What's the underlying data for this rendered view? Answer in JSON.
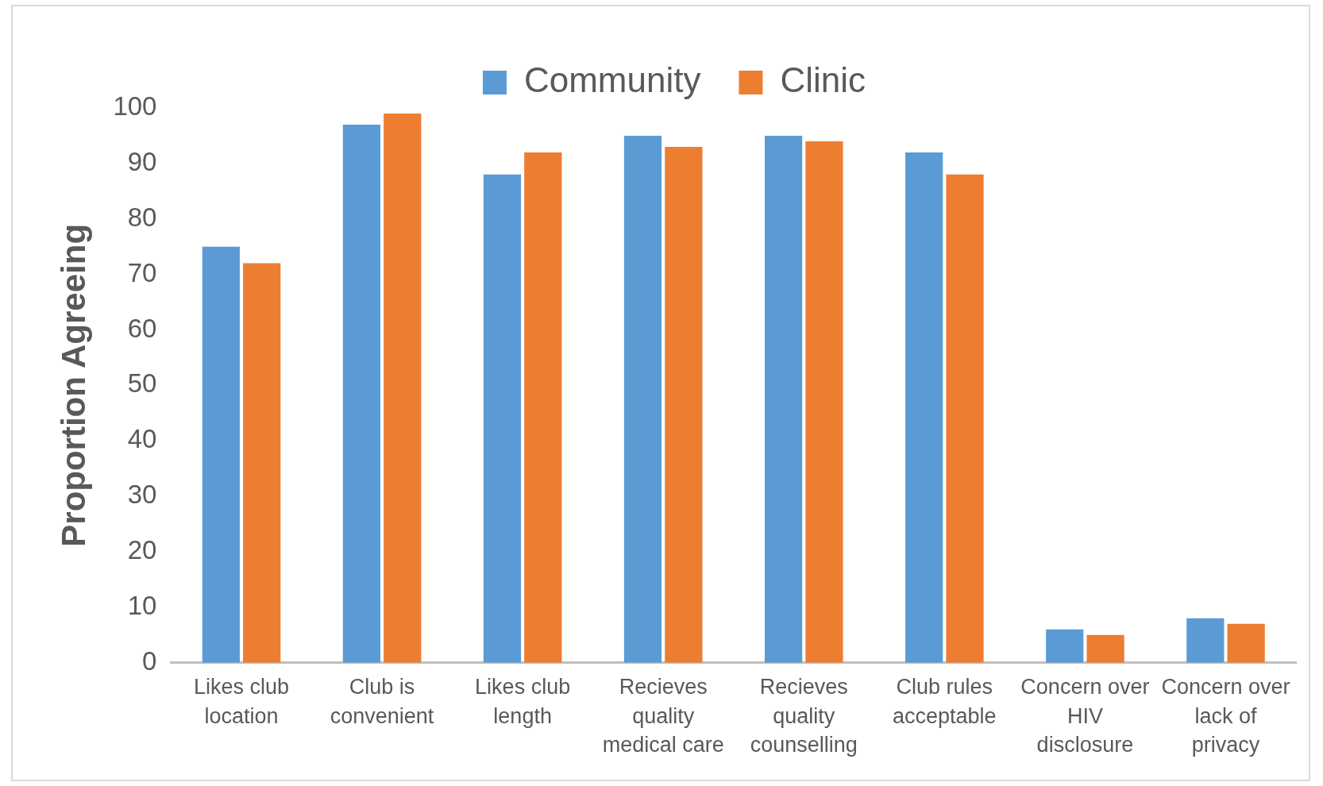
{
  "chart_data": {
    "type": "bar",
    "ylabel": "Proportion Agreeing",
    "categories": [
      "Likes club location",
      "Club is convenient",
      "Likes club length",
      "Recieves quality medical care",
      "Recieves quality counselling",
      "Club rules acceptable",
      "Concern over HIV disclosure",
      "Concern over lack of privacy"
    ],
    "series": [
      {
        "name": "Community",
        "color": "#5b9bd5",
        "values": [
          75,
          97,
          88,
          95,
          95,
          92,
          6,
          8
        ]
      },
      {
        "name": "Clinic",
        "color": "#ed7d31",
        "values": [
          72,
          99,
          92,
          93,
          94,
          88,
          5,
          7
        ]
      }
    ],
    "ylim": [
      0,
      100
    ],
    "yticks": [
      0,
      10,
      20,
      30,
      40,
      50,
      60,
      70,
      80,
      90,
      100
    ],
    "grid": false,
    "legend": "top"
  }
}
